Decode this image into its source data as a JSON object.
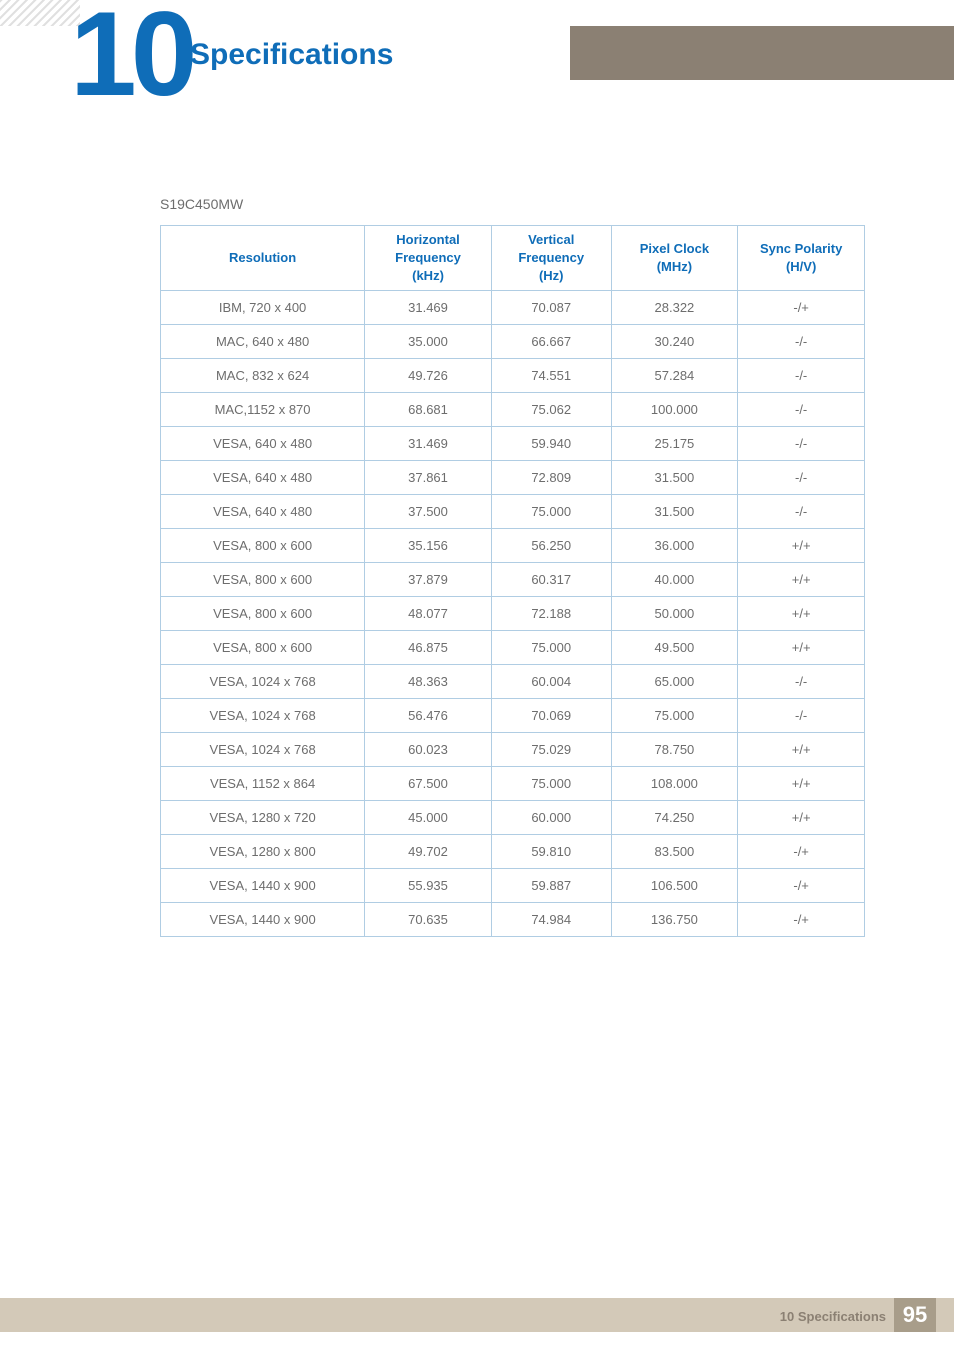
{
  "chapter": {
    "number": "10",
    "title": "Specifications"
  },
  "model": "S19C450MW",
  "table": {
    "columns": [
      "Resolution",
      "Horizontal\nFrequency\n(kHz)",
      "Vertical\nFrequency\n(Hz)",
      "Pixel Clock\n(MHz)",
      "Sync Polarity\n(H/V)"
    ],
    "rows": [
      [
        "IBM, 720 x 400",
        "31.469",
        "70.087",
        "28.322",
        "-/+"
      ],
      [
        "MAC, 640 x 480",
        "35.000",
        "66.667",
        "30.240",
        "-/-"
      ],
      [
        "MAC, 832 x 624",
        "49.726",
        "74.551",
        "57.284",
        "-/-"
      ],
      [
        "MAC,1152 x 870",
        "68.681",
        "75.062",
        "100.000",
        "-/-"
      ],
      [
        "VESA, 640 x 480",
        "31.469",
        "59.940",
        "25.175",
        "-/-"
      ],
      [
        "VESA, 640 x 480",
        "37.861",
        "72.809",
        "31.500",
        "-/-"
      ],
      [
        "VESA, 640 x 480",
        "37.500",
        "75.000",
        "31.500",
        "-/-"
      ],
      [
        "VESA, 800 x 600",
        "35.156",
        "56.250",
        "36.000",
        "+/+"
      ],
      [
        "VESA, 800 x 600",
        "37.879",
        "60.317",
        "40.000",
        "+/+"
      ],
      [
        "VESA, 800 x 600",
        "48.077",
        "72.188",
        "50.000",
        "+/+"
      ],
      [
        "VESA, 800 x 600",
        "46.875",
        "75.000",
        "49.500",
        "+/+"
      ],
      [
        "VESA, 1024 x 768",
        "48.363",
        "60.004",
        "65.000",
        "-/-"
      ],
      [
        "VESA, 1024 x 768",
        "56.476",
        "70.069",
        "75.000",
        "-/-"
      ],
      [
        "VESA, 1024 x 768",
        "60.023",
        "75.029",
        "78.750",
        "+/+"
      ],
      [
        "VESA, 1152 x 864",
        "67.500",
        "75.000",
        "108.000",
        "+/+"
      ],
      [
        "VESA, 1280 x 720",
        "45.000",
        "60.000",
        "74.250",
        "+/+"
      ],
      [
        "VESA, 1280 x 800",
        "49.702",
        "59.810",
        "83.500",
        "-/+"
      ],
      [
        "VESA, 1440 x 900",
        "55.935",
        "59.887",
        "106.500",
        "-/+"
      ],
      [
        "VESA, 1440 x 900",
        "70.635",
        "74.984",
        "136.750",
        "-/+"
      ]
    ]
  },
  "footer": {
    "section": "10 Specifications",
    "page": "95"
  },
  "colors": {
    "brand_blue": "#0f6db8",
    "border_blue": "#b0cde3",
    "header_bar": "#8b8073",
    "footer_bar": "#d3c9b8",
    "page_box": "#a89d8a",
    "text_grey": "#6d6d6d"
  }
}
